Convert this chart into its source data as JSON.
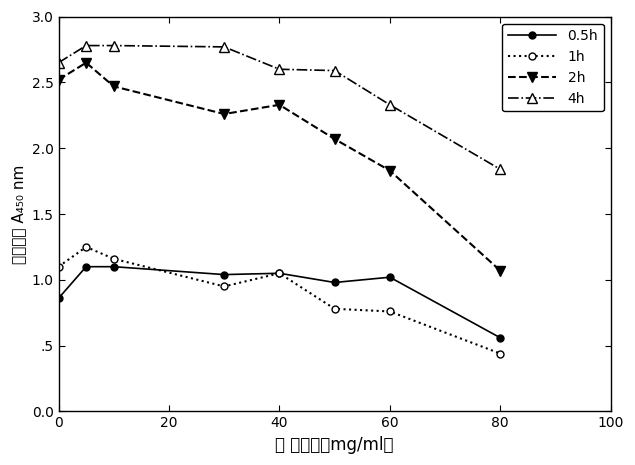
{
  "x_0.5h": [
    0,
    5,
    10,
    30,
    40,
    50,
    60,
    80
  ],
  "y_0.5h": [
    0.86,
    1.1,
    1.1,
    1.04,
    1.05,
    0.98,
    1.02,
    0.56
  ],
  "x_1h": [
    0,
    5,
    10,
    30,
    40,
    50,
    60,
    80
  ],
  "y_1h": [
    1.1,
    1.25,
    1.16,
    0.95,
    1.05,
    0.78,
    0.76,
    0.44
  ],
  "x_2h": [
    0,
    5,
    10,
    30,
    40,
    50,
    60,
    80
  ],
  "y_2h": [
    2.52,
    2.65,
    2.47,
    2.26,
    2.33,
    2.07,
    1.83,
    1.07
  ],
  "x_4h": [
    0,
    5,
    10,
    30,
    40,
    50,
    60,
    80
  ],
  "y_4h": [
    2.65,
    2.78,
    2.78,
    2.77,
    2.6,
    2.59,
    2.33,
    1.84
  ],
  "xlabel": "染 毒浓度（mg/ml）",
  "ylabel_chinese": "吸光度值",
  "ylabel_sub": "A₄₅₀ nm",
  "xlim": [
    0,
    100
  ],
  "ylim": [
    0.0,
    3.0
  ],
  "xticks": [
    0,
    20,
    40,
    60,
    80,
    100
  ],
  "yticks": [
    0.0,
    0.5,
    1.0,
    1.5,
    2.0,
    2.5,
    3.0
  ],
  "ytick_labels": [
    "0.0",
    ".5",
    "1.0",
    "1.5",
    "2.0",
    "2.5",
    "3.0"
  ],
  "legend_labels": [
    "0.5h",
    "1h",
    "2h",
    "4h"
  ],
  "color": "#000000",
  "figsize": [
    6.35,
    4.65
  ],
  "dpi": 100
}
